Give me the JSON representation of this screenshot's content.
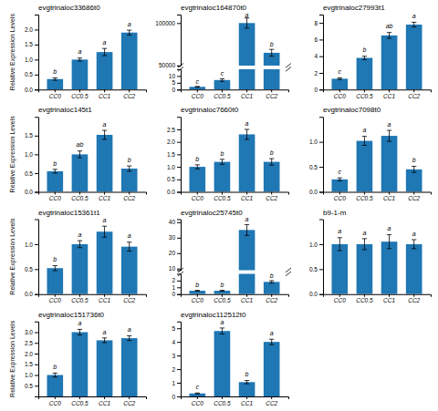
{
  "chart_data": [
    {
      "type": "bar",
      "title": "evgtrinaloc33686t0",
      "categories": [
        "CC0",
        "CC0.5",
        "CC1",
        "CC2"
      ],
      "values": [
        0.35,
        1.0,
        1.25,
        1.9
      ],
      "errors": [
        0.04,
        0.05,
        0.12,
        0.08
      ],
      "letters": [
        "b",
        "a",
        "a",
        "a"
      ],
      "ylim": [
        0.0,
        2.5
      ],
      "yticks": [
        {
          "value": 0.0,
          "label": "0.0"
        },
        0.5,
        {
          "value": 1.0,
          "label": "1.0"
        },
        1.5,
        {
          "value": 2.0,
          "label": "2.0"
        }
      ],
      "ylabel": "Relative Expression Levels"
    },
    {
      "type": "bar",
      "title": "evgtrinaloc164870t0",
      "categories": [
        "CC0",
        "CC0.5",
        "CC1",
        "CC2"
      ],
      "values": [
        2.0,
        7.0,
        100000.0,
        65000.0
      ],
      "errors": [
        0.3,
        0.9,
        6000.0,
        4000.0
      ],
      "letters": [
        "c",
        "c",
        "a",
        "b"
      ],
      "ylim": [
        [
          0,
          15
        ],
        [
          49990,
          110000
        ]
      ],
      "yticks": [
        [
          0,
          5,
          10
        ],
        [
          50000,
          100000
        ]
      ]
    },
    {
      "type": "bar",
      "title": "evgtrinaloc27993t1",
      "categories": [
        "CC0",
        "CC0.5",
        "CC1",
        "CC2"
      ],
      "values": [
        1.3,
        3.8,
        6.5,
        7.8
      ],
      "errors": [
        0.1,
        0.2,
        0.35,
        0.28
      ],
      "letters": [
        "c",
        "b",
        "ab",
        "a"
      ],
      "ylim": [
        0,
        9
      ],
      "yticks": [
        0,
        2,
        4,
        6,
        8
      ]
    },
    {
      "type": "bar",
      "title": "evgtrinaloc145t1",
      "categories": [
        "CC0",
        "CC0.5",
        "CC1",
        "CC2"
      ],
      "values": [
        0.55,
        1.0,
        1.52,
        0.62
      ],
      "errors": [
        0.05,
        0.09,
        0.12,
        0.07
      ],
      "letters": [
        "b",
        "ab",
        "a",
        "b"
      ],
      "ylim": [
        0.0,
        2.0
      ],
      "yticks": [
        {
          "value": 0.0,
          "label": "0.0"
        },
        0.5,
        {
          "value": 1.0,
          "label": "1.0"
        },
        1.5
      ],
      "ylabel": "Relative Expression Levels"
    },
    {
      "type": "bar",
      "title": "evgtrinaloc7660t0",
      "categories": [
        "CC0",
        "CC0.5",
        "CC1",
        "CC2"
      ],
      "values": [
        1.0,
        1.2,
        2.3,
        1.2
      ],
      "errors": [
        0.08,
        0.1,
        0.2,
        0.13
      ],
      "letters": [
        "b",
        "b",
        "a",
        "b"
      ],
      "ylim": [
        0.0,
        3.0
      ],
      "yticks": [
        {
          "value": 0.0,
          "label": "0.0"
        },
        0.5,
        {
          "value": 1.0,
          "label": "1.0"
        },
        1.5,
        {
          "value": 2.0,
          "label": "2.0"
        },
        2.5
      ]
    },
    {
      "type": "bar",
      "title": "evgtrinaloc7098t0",
      "categories": [
        "CC0",
        "CC0.5",
        "CC1",
        "CC2"
      ],
      "values": [
        0.25,
        1.02,
        1.12,
        0.45
      ],
      "errors": [
        0.03,
        0.09,
        0.11,
        0.06
      ],
      "letters": [
        "c",
        "a",
        "a",
        "b"
      ],
      "ylim": [
        0.0,
        1.5
      ],
      "yticks": [
        {
          "value": 0.0,
          "label": "0.0"
        },
        0.5,
        {
          "value": 1.0,
          "label": "1.0"
        }
      ]
    },
    {
      "type": "bar",
      "title": "evgtrinaloc15361t1",
      "categories": [
        "CC0",
        "CC0.5",
        "CC1",
        "CC2"
      ],
      "values": [
        0.52,
        1.0,
        1.25,
        0.95
      ],
      "errors": [
        0.05,
        0.07,
        0.11,
        0.09
      ],
      "letters": [
        "b",
        "a",
        "a",
        "a"
      ],
      "ylim": [
        0.0,
        1.5
      ],
      "yticks": [
        {
          "value": 0.0,
          "label": "0.0"
        },
        0.5,
        {
          "value": 1.0,
          "label": "1.0"
        }
      ],
      "ylabel": "Relative Expression Levels"
    },
    {
      "type": "bar",
      "title": "evgtrinaloc25745t0",
      "categories": [
        "CC0",
        "CC0.5",
        "CC1",
        "CC2"
      ],
      "values": [
        0.5,
        0.5,
        35.0,
        1.8
      ],
      "errors": [
        0.06,
        0.06,
        3.5,
        0.18
      ],
      "letters": [
        "b",
        "b",
        "a",
        "b"
      ],
      "ylim": [
        [
          0,
          3
        ],
        [
          9,
          42
        ]
      ],
      "yticks": [
        [
          0,
          1,
          2
        ],
        [
          10,
          20,
          30,
          40
        ]
      ]
    },
    {
      "type": "bar",
      "title": "b9-1-m",
      "categories": [
        "CC0",
        "CC0.5",
        "CC1",
        "CC2"
      ],
      "values": [
        1.0,
        1.0,
        1.05,
        1.0
      ],
      "errors": [
        0.13,
        0.11,
        0.14,
        0.09
      ],
      "letters": [
        "a",
        "a",
        "a",
        "a"
      ],
      "ylim": [
        0.0,
        1.5
      ],
      "yticks": [
        {
          "value": 0.0,
          "label": "0.0"
        },
        0.5,
        {
          "value": 1.0,
          "label": "1.0"
        }
      ]
    },
    {
      "type": "bar",
      "title": "evgtrinaloc151736t0",
      "categories": [
        "CC0",
        "CC0.5",
        "CC1",
        "CC2"
      ],
      "values": [
        1.0,
        3.0,
        2.62,
        2.72
      ],
      "errors": [
        0.09,
        0.13,
        0.11,
        0.11
      ],
      "letters": [
        "b",
        "a",
        "a",
        "a"
      ],
      "ylim": [
        0.0,
        3.5
      ],
      "yticks": [
        0.5,
        {
          "value": 1.0,
          "label": "1.0"
        },
        1.5,
        {
          "value": 2.0,
          "label": "2.0"
        },
        2.5,
        {
          "value": 3.0,
          "label": "3.0"
        }
      ],
      "ylabel": "Relative Expression Levels"
    },
    {
      "type": "bar",
      "title": "evgtrinaloc112512t0",
      "categories": [
        "CC0",
        "CC0.5",
        "CC1",
        "CC2"
      ],
      "values": [
        0.22,
        4.8,
        1.05,
        4.0
      ],
      "errors": [
        0.03,
        0.22,
        0.12,
        0.2
      ],
      "letters": [
        "c",
        "a",
        "b",
        "a"
      ],
      "ylim": [
        0.0,
        5.5
      ],
      "yticks": [
        0,
        1,
        2,
        3,
        4,
        5
      ]
    }
  ]
}
